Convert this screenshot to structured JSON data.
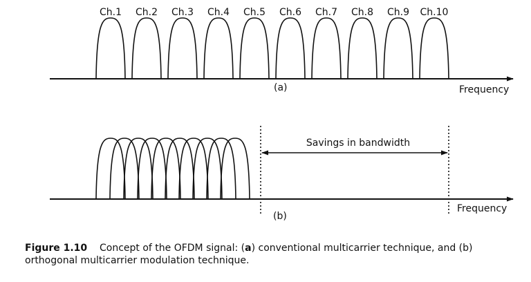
{
  "panel_a": {
    "channels": [
      "Ch.1",
      "Ch.2",
      "Ch.3",
      "Ch.4",
      "Ch.5",
      "Ch.6",
      "Ch.7",
      "Ch.8",
      "Ch.9",
      "Ch.10"
    ],
    "tag": "(a)",
    "axis_label": "Frequency"
  },
  "panel_b": {
    "subcarrier_count": 10,
    "savings_label": "Savings in bandwidth",
    "tag": "(b)",
    "axis_label": "Frequency"
  },
  "caption": {
    "figure_number": "Figure 1.10",
    "text_1": "Concept of the OFDM signal: (",
    "tag_a": "a",
    "text_2": ") conventional multicarrier technique, and (b)",
    "text_3": "orthogonal multicarrier modulation technique."
  }
}
